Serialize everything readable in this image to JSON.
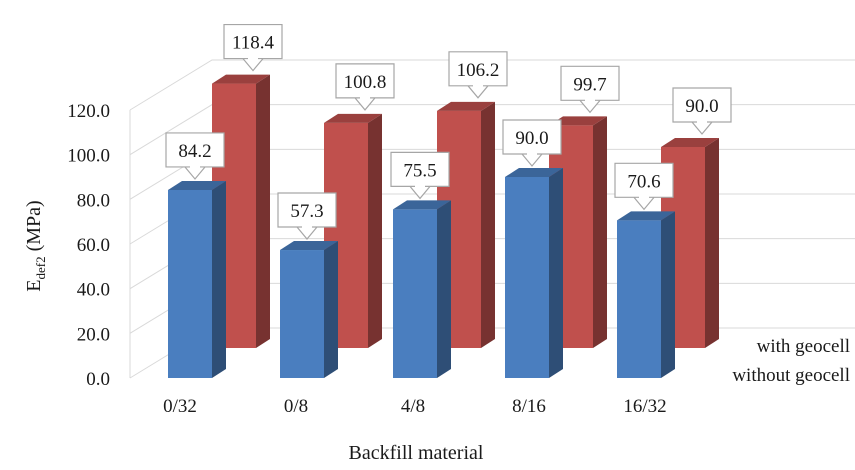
{
  "chart_data": {
    "type": "bar",
    "categories": [
      "0/32",
      "0/8",
      "4/8",
      "8/16",
      "16/32"
    ],
    "series": [
      {
        "name": "without geocell",
        "values": [
          84.2,
          57.3,
          75.5,
          90.0,
          70.6
        ],
        "color": "#4a7ebf"
      },
      {
        "name": "with geocell",
        "values": [
          118.4,
          100.8,
          106.2,
          99.7,
          90.0
        ],
        "color": "#c0504d"
      }
    ],
    "data_labels": {
      "without geocell": [
        "84.2",
        "57.3",
        "75.5",
        "90.0",
        "70.6"
      ],
      "with geocell": [
        "118.4",
        "100.8",
        "106.2",
        "99.7",
        "90.0"
      ]
    },
    "y_ticks": [
      "0.0",
      "20.0",
      "40.0",
      "60.0",
      "80.0",
      "100.0",
      "120.0"
    ],
    "ylim": [
      0,
      120
    ],
    "xlabel": "Backfill material",
    "ylabel_main": "E",
    "ylabel_sub": "def2",
    "ylabel_unit": " (MPa)",
    "grid": true,
    "style": "3d-clustered-column"
  }
}
